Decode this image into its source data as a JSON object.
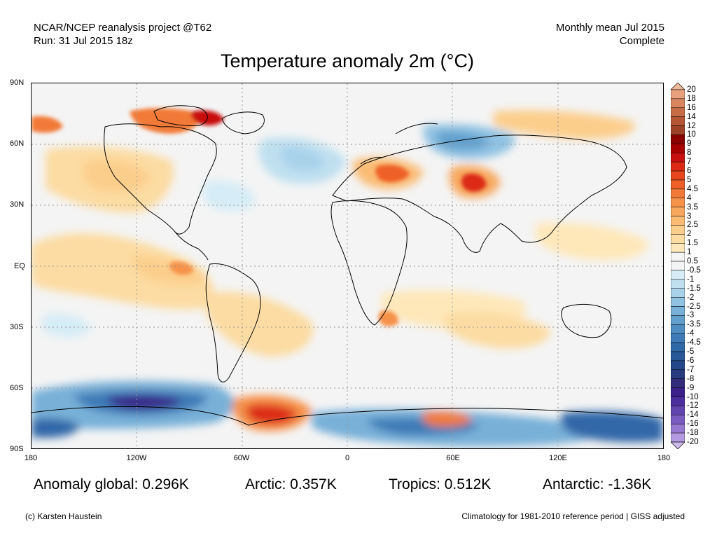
{
  "header": {
    "source_line1": "NCAR/NCEP reanalysis project @T62",
    "source_line2": "Run: 31 Jul 2015 18z",
    "period_line1": "Monthly mean Jul 2015",
    "period_line2": "Complete"
  },
  "title": "Temperature anomaly 2m (°C)",
  "axes": {
    "lat_labels": [
      "90N",
      "60N",
      "30N",
      "EQ",
      "30S",
      "60S",
      "90S"
    ],
    "lon_labels": [
      "180",
      "120W",
      "60W",
      "0",
      "60E",
      "120E",
      "180"
    ]
  },
  "colorbar": {
    "labels": [
      "20",
      "18",
      "16",
      "14",
      "12",
      "10",
      "9",
      "8",
      "7",
      "6",
      "5",
      "4.5",
      "4",
      "3.5",
      "3",
      "2.5",
      "2",
      "1.5",
      "1",
      "0.5",
      "-0.5",
      "-1",
      "-1.5",
      "-2",
      "-2.5",
      "-3",
      "-3.5",
      "-4",
      "-4.5",
      "-5",
      "-6",
      "-7",
      "-8",
      "-9",
      "-10",
      "-12",
      "-14",
      "-16",
      "-18",
      "-20"
    ],
    "colors": [
      "#f0b89a",
      "#e8a07d",
      "#d98660",
      "#c86c48",
      "#b45636",
      "#9e4228",
      "#8a0000",
      "#a80000",
      "#c81010",
      "#dc2a14",
      "#e8461e",
      "#ee6028",
      "#f27a38",
      "#f6924a",
      "#f8a85e",
      "#fabc74",
      "#fcce8c",
      "#fcdca2",
      "#fee8ba",
      "#f4f4f4",
      "#f4f4f4",
      "#d6ecf6",
      "#c0e0f0",
      "#a8d2ea",
      "#90c2e2",
      "#78b0d8",
      "#62a0ce",
      "#4e8cc2",
      "#3e7ab6",
      "#3068a8",
      "#285898",
      "#24488a",
      "#283a80",
      "#322c7a",
      "#3a2088",
      "#4c2e9c",
      "#6244ae",
      "#7a5cc0",
      "#9678d0",
      "#b49ae0",
      "#cdb9ec"
    ]
  },
  "stats": {
    "global": "Anomaly global: 0.296K",
    "arctic": "Arctic: 0.357K",
    "tropics": "Tropics: 0.512K",
    "antarctic": "Antarctic: -1.36K"
  },
  "footer": {
    "credit": "(c) Karsten Haustein",
    "note": "Climatology for 1981-2010 reference period | GISS adjusted"
  }
}
